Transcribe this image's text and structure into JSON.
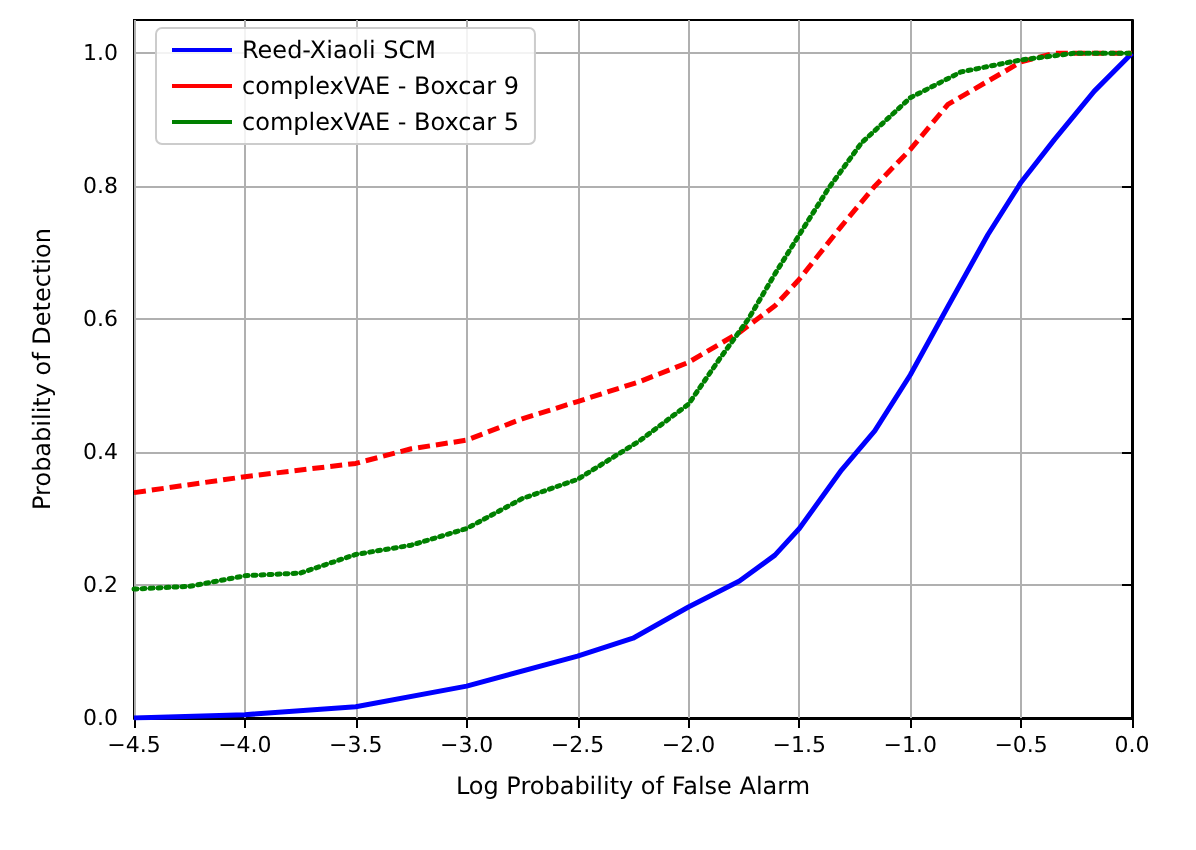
{
  "chart_data": {
    "type": "line",
    "xlabel": "Log Probability of False Alarm",
    "ylabel": "Probability of Detection",
    "xlim": [
      -4.5,
      0
    ],
    "ylim": [
      0,
      1.05
    ],
    "xticks": [
      {
        "value": -4.5,
        "label": "−4.5"
      },
      {
        "value": -4,
        "label": "−4.0"
      },
      {
        "value": -3.5,
        "label": "−3.5"
      },
      {
        "value": -3,
        "label": "−3.0"
      },
      {
        "value": -2.5,
        "label": "−2.5"
      },
      {
        "value": -2,
        "label": "−2.0"
      },
      {
        "value": -1.5,
        "label": "−1.5"
      },
      {
        "value": -1,
        "label": "−1.0"
      },
      {
        "value": -0.5,
        "label": "−0.5"
      },
      {
        "value": 0,
        "label": "0.0"
      }
    ],
    "yticks": [
      {
        "value": 0,
        "label": "0.0"
      },
      {
        "value": 0.2,
        "label": "0.2"
      },
      {
        "value": 0.4,
        "label": "0.4"
      },
      {
        "value": 0.6,
        "label": "0.6"
      },
      {
        "value": 0.8,
        "label": "0.8"
      },
      {
        "value": 1,
        "label": "1.0"
      }
    ],
    "grid": true,
    "legend": "top left",
    "marker": "none",
    "series": [
      {
        "name": "Reed-Xiaoli SCM",
        "color": "#0000ff",
        "line_style": "solid",
        "x": [
          -4.5,
          -4,
          -3.5,
          -3,
          -2.5,
          -2.25,
          -2,
          -1.77,
          -1.61,
          -1.5,
          -1.31,
          -1.16,
          -1,
          -0.83,
          -0.65,
          -0.5,
          -0.35,
          -0.17,
          0
        ],
        "values": [
          0.0,
          0.005,
          0.017,
          0.048,
          0.093,
          0.12,
          0.167,
          0.206,
          0.245,
          0.285,
          0.373,
          0.432,
          0.516,
          0.619,
          0.727,
          0.806,
          0.87,
          0.943,
          1.0
        ]
      },
      {
        "name": "complexVAE - Boxcar 9",
        "color": "#ff0000",
        "line_style": "dashed",
        "x": [
          -4.5,
          -4,
          -3.5,
          -3.25,
          -3,
          -2.75,
          -2.5,
          -2.22,
          -2,
          -1.77,
          -1.61,
          -1.5,
          -1.31,
          -1.16,
          -1,
          -0.83,
          -0.65,
          -0.5,
          -0.35,
          0
        ],
        "values": [
          0.339,
          0.363,
          0.383,
          0.405,
          0.418,
          0.45,
          0.476,
          0.506,
          0.535,
          0.58,
          0.62,
          0.66,
          0.74,
          0.8,
          0.855,
          0.923,
          0.958,
          0.987,
          1.0,
          1.0
        ]
      },
      {
        "name": "complexVAE - Boxcar 5",
        "color": "#008000",
        "line_style": "dotted",
        "x": [
          -4.5,
          -4.25,
          -4,
          -3.75,
          -3.5,
          -3.25,
          -3,
          -2.75,
          -2.5,
          -2.22,
          -2,
          -1.86,
          -1.73,
          -1.61,
          -1.5,
          -1.37,
          -1.22,
          -1,
          -0.77,
          -0.5,
          -0.26,
          0
        ],
        "values": [
          0.194,
          0.198,
          0.214,
          0.218,
          0.246,
          0.26,
          0.285,
          0.33,
          0.359,
          0.417,
          0.472,
          0.54,
          0.6,
          0.668,
          0.727,
          0.796,
          0.865,
          0.933,
          0.972,
          0.99,
          1.0,
          1.0
        ]
      }
    ]
  }
}
